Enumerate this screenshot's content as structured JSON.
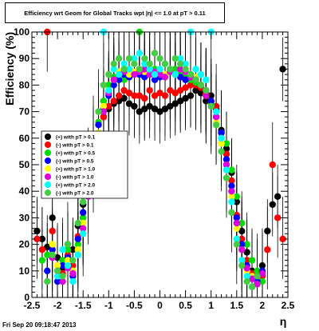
{
  "chart_data": {
    "type": "scatter",
    "title": "Efficiency wrt Geom for Global Tracks wpt |η| <= 1.0 at pT > 0.11",
    "xlabel": "η",
    "ylabel": "Efficiency (%)",
    "xlim": [
      -2.5,
      2.5
    ],
    "ylim": [
      0,
      100
    ],
    "x_ticks": [
      -2.5,
      -2,
      -1.5,
      -1,
      -0.5,
      0,
      0.5,
      1,
      1.5,
      2,
      2.5
    ],
    "x_tick_labels": [
      "-2.5",
      "-2",
      "-1.5",
      "-1",
      "-0.5",
      "0",
      "0.5",
      "1",
      "1.5",
      "2",
      "2.5"
    ],
    "y_ticks": [
      0,
      10,
      20,
      30,
      40,
      50,
      60,
      70,
      80,
      90,
      100
    ],
    "y_tick_labels": [
      "0",
      "10",
      "20",
      "30",
      "40",
      "50",
      "60",
      "70",
      "80",
      "90",
      "100"
    ],
    "grid": false,
    "legend_position": "left, mid-height",
    "series": [
      {
        "name": "(+) with pT > 0.1",
        "color": "#000000",
        "x": [
          -2.4,
          -2.3,
          -2.2,
          -2.1,
          -2.0,
          -1.9,
          -1.8,
          -1.7,
          -1.6,
          -1.5,
          -1.4,
          -1.3,
          -1.2,
          -1.1,
          -1.0,
          -0.9,
          -0.8,
          -0.7,
          -0.6,
          -0.5,
          -0.4,
          -0.3,
          -0.2,
          -0.1,
          0.0,
          0.1,
          0.2,
          0.3,
          0.4,
          0.5,
          0.6,
          0.7,
          0.8,
          0.9,
          1.0,
          1.1,
          1.2,
          1.3,
          1.4,
          1.5,
          1.6,
          1.7,
          1.8,
          1.9,
          2.0,
          2.1,
          2.2,
          2.3,
          2.4
        ],
        "y": [
          25,
          22,
          19,
          30,
          15,
          11,
          20,
          18,
          27,
          35,
          47,
          55,
          62,
          68,
          71,
          73,
          74,
          75,
          73,
          72,
          70,
          71,
          72,
          71,
          70,
          71,
          72,
          73,
          74,
          75,
          76,
          78,
          77,
          74,
          76,
          71,
          63,
          56,
          47,
          36,
          25,
          17,
          10,
          8,
          12,
          25,
          35,
          38,
          86
        ]
      },
      {
        "name": "(-) with pT > 0.1",
        "color": "#ff0000",
        "x": [
          -2.4,
          -2.3,
          -2.2,
          -2.1,
          -2.0,
          -1.9,
          -1.8,
          -1.7,
          -1.6,
          -1.5,
          -1.4,
          -1.3,
          -1.2,
          -1.1,
          -1.0,
          -0.9,
          -0.8,
          -0.7,
          -0.6,
          -0.5,
          -0.4,
          -0.3,
          -0.2,
          -0.1,
          0.0,
          0.1,
          0.2,
          0.3,
          0.4,
          0.5,
          0.6,
          0.7,
          0.8,
          0.9,
          1.0,
          1.1,
          1.2,
          1.3,
          1.4,
          1.5,
          1.6,
          1.7,
          1.8,
          1.9,
          2.0,
          2.1,
          2.2,
          2.3,
          2.4
        ],
        "y": [
          22,
          18,
          100,
          25,
          12,
          9,
          16,
          12,
          23,
          30,
          41,
          52,
          60,
          68,
          72,
          74,
          76,
          78,
          77,
          76,
          76,
          75,
          78,
          76,
          77,
          76,
          78,
          77,
          78,
          79,
          80,
          80,
          79,
          77,
          74,
          72,
          62,
          54,
          44,
          31,
          22,
          14,
          9,
          6,
          8,
          18,
          50,
          30,
          22
        ]
      },
      {
        "name": "(+) with pT > 0.5",
        "color": "#00dd00",
        "x": [
          -2.3,
          -2.2,
          -2.1,
          -2.0,
          -1.9,
          -1.8,
          -1.7,
          -1.6,
          -1.5,
          -1.4,
          -1.3,
          -1.2,
          -1.1,
          -1.0,
          -0.9,
          -0.8,
          -0.7,
          -0.6,
          -0.5,
          -0.4,
          -0.3,
          -0.2,
          -0.1,
          0.0,
          0.1,
          0.2,
          0.3,
          0.4,
          0.5,
          0.6,
          0.7,
          0.8,
          0.9,
          1.0,
          1.1,
          1.2,
          1.3,
          1.4,
          1.5,
          1.6,
          1.7,
          1.8,
          1.9,
          2.0
        ],
        "y": [
          14,
          16,
          20,
          10,
          14,
          18,
          10,
          20,
          30,
          42,
          55,
          66,
          74,
          80,
          83,
          84,
          82,
          86,
          85,
          100,
          85,
          84,
          86,
          84,
          83,
          85,
          86,
          84,
          83,
          82,
          81,
          80,
          76,
          73,
          70,
          62,
          58,
          48,
          38,
          28,
          20,
          14,
          10,
          6
        ]
      },
      {
        "name": "(-) with pT > 0.5",
        "color": "#0000ff",
        "x": [
          -2.2,
          -2.1,
          -2.0,
          -1.9,
          -1.8,
          -1.7,
          -1.6,
          -1.5,
          -1.4,
          -1.3,
          -1.2,
          -1.1,
          -1.0,
          -0.9,
          -0.8,
          -0.7,
          -0.6,
          -0.5,
          -0.4,
          -0.3,
          -0.2,
          -0.1,
          0.0,
          0.1,
          0.2,
          0.3,
          0.4,
          0.5,
          0.6,
          0.7,
          0.8,
          0.9,
          1.0,
          1.1,
          1.2,
          1.3,
          1.4,
          1.5,
          1.6,
          1.7,
          1.8,
          1.9,
          2.0
        ],
        "y": [
          10,
          18,
          6,
          12,
          15,
          8,
          22,
          32,
          44,
          56,
          65,
          71,
          76,
          80,
          82,
          84,
          83,
          85,
          84,
          83,
          84,
          82,
          83,
          84,
          85,
          84,
          83,
          82,
          84,
          83,
          80,
          78,
          74,
          68,
          62,
          52,
          42,
          30,
          20,
          12,
          8,
          6,
          10
        ]
      },
      {
        "name": "(+) with pT > 1.0",
        "color": "#ffff00",
        "x": [
          -2.1,
          -2.0,
          -1.9,
          -1.8,
          -1.7,
          -1.6,
          -1.5,
          -1.4,
          -1.3,
          -1.2,
          -1.1,
          -1.0,
          -0.9,
          -0.8,
          -0.7,
          -0.6,
          -0.5,
          -0.4,
          -0.3,
          -0.2,
          -0.1,
          0.0,
          0.1,
          0.2,
          0.3,
          0.4,
          0.5,
          0.6,
          0.7,
          0.8,
          0.9,
          1.0,
          1.1,
          1.2,
          1.3,
          1.4,
          1.5,
          1.6,
          1.7,
          1.8,
          1.9
        ],
        "y": [
          20,
          12,
          8,
          14,
          10,
          18,
          28,
          40,
          52,
          62,
          72,
          78,
          82,
          85,
          86,
          84,
          85,
          86,
          85,
          84,
          85,
          86,
          84,
          85,
          84,
          86,
          85,
          84,
          83,
          80,
          76,
          72,
          66,
          58,
          48,
          38,
          26,
          18,
          10,
          8,
          5
        ]
      },
      {
        "name": "(-) with pT > 1.0",
        "color": "#dd00dd",
        "x": [
          -2.1,
          -2.0,
          -1.9,
          -1.8,
          -1.7,
          -1.6,
          -1.5,
          -1.4,
          -1.3,
          -1.2,
          -1.1,
          -1.0,
          -0.9,
          -0.8,
          -0.7,
          -0.6,
          -0.5,
          -0.4,
          -0.3,
          -0.2,
          -0.1,
          0.0,
          0.1,
          0.2,
          0.3,
          0.4,
          0.5,
          0.6,
          0.7,
          0.8,
          0.9,
          1.0,
          1.1,
          1.2,
          1.3,
          1.4,
          1.5,
          1.6,
          1.7,
          1.8,
          1.9,
          2.0
        ],
        "y": [
          15,
          10,
          6,
          11,
          9,
          16,
          26,
          38,
          50,
          61,
          70,
          77,
          82,
          84,
          85,
          86,
          84,
          85,
          86,
          84,
          85,
          84,
          83,
          85,
          84,
          86,
          85,
          83,
          82,
          80,
          76,
          72,
          68,
          60,
          50,
          40,
          28,
          18,
          11,
          7,
          5,
          9
        ]
      },
      {
        "name": "(+) with pT > 2.0",
        "color": "#00ffff",
        "x": [
          -2.0,
          -1.9,
          -1.8,
          -1.7,
          -1.6,
          -1.5,
          -1.4,
          -1.3,
          -1.2,
          -1.1,
          -1.0,
          -0.9,
          -0.8,
          -0.7,
          -0.6,
          -0.5,
          -0.4,
          -0.3,
          -0.2,
          -0.1,
          0.0,
          0.1,
          0.2,
          0.3,
          0.4,
          0.5,
          0.6,
          0.7,
          0.8,
          0.9,
          1.0,
          1.1,
          1.2,
          1.3,
          1.4,
          1.5,
          1.6,
          1.7,
          1.8
        ],
        "y": [
          8,
          18,
          12,
          6,
          16,
          24,
          40,
          58,
          60,
          100,
          78,
          86,
          84,
          88,
          86,
          90,
          92,
          88,
          86,
          84,
          86,
          88,
          86,
          84,
          90,
          88,
          100,
          86,
          84,
          82,
          100,
          70,
          60,
          48,
          36,
          22,
          14,
          8,
          4
        ]
      },
      {
        "name": "(-) with pT > 2.0",
        "color": "#44cc44",
        "x": [
          -2.2,
          -2.1,
          -2.0,
          -1.9,
          -1.8,
          -1.7,
          -1.6,
          -1.5,
          -1.4,
          -1.3,
          -1.2,
          -1.1,
          -1.0,
          -0.9,
          -0.8,
          -0.7,
          -0.6,
          -0.5,
          -0.4,
          -0.3,
          -0.2,
          -0.1,
          0.0,
          0.1,
          0.2,
          0.3,
          0.4,
          0.5,
          0.6,
          0.7,
          0.8,
          0.9,
          1.0,
          1.1,
          1.2,
          1.3,
          1.4,
          1.5,
          1.6,
          1.7,
          1.8,
          1.9
        ],
        "y": [
          6,
          16,
          10,
          8,
          20,
          14,
          28,
          36,
          48,
          60,
          70,
          80,
          84,
          88,
          90,
          86,
          90,
          88,
          86,
          90,
          88,
          92,
          90,
          88,
          86,
          90,
          88,
          86,
          84,
          82,
          80,
          78,
          72,
          65,
          55,
          45,
          32,
          20,
          12,
          6,
          4,
          8
        ]
      }
    ]
  },
  "footer": "Fri Sep 20 09:18:47 2013"
}
